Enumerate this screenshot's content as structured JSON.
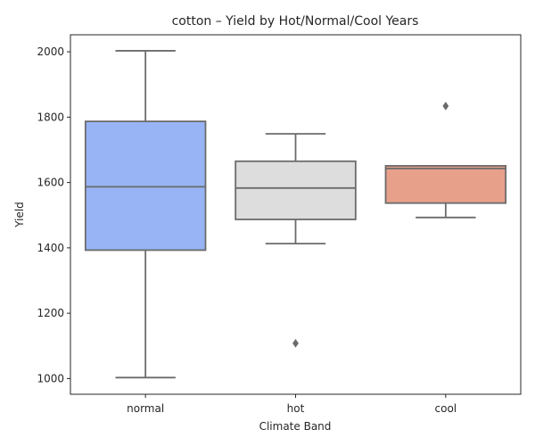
{
  "chart_data": {
    "type": "box",
    "title": "cotton – Yield by Hot/Normal/Cool Years",
    "xlabel": "Climate Band",
    "ylabel": "Yield",
    "ylim": [
      952,
      2052
    ],
    "yticks": [
      1000,
      1200,
      1400,
      1600,
      1800,
      2000
    ],
    "grid": false,
    "categories": [
      "normal",
      "hot",
      "cool"
    ],
    "boxes": [
      {
        "category": "normal",
        "color": "#98b4f5",
        "whisker_low": 1003,
        "q1": 1393,
        "median": 1587,
        "q3": 1787,
        "whisker_high": 2003,
        "outliers": []
      },
      {
        "category": "hot",
        "color": "#dddddd",
        "whisker_low": 1413,
        "q1": 1487,
        "median": 1583,
        "q3": 1665,
        "whisker_high": 1749,
        "outliers": [
          1108
        ]
      },
      {
        "category": "cool",
        "color": "#e7a08a",
        "whisker_low": 1493,
        "q1": 1537,
        "median": 1643,
        "q3": 1651,
        "whisker_high": 1651,
        "outliers": [
          1834
        ]
      }
    ],
    "line_color": "#6b6b6b",
    "axis_color": "#262626"
  }
}
